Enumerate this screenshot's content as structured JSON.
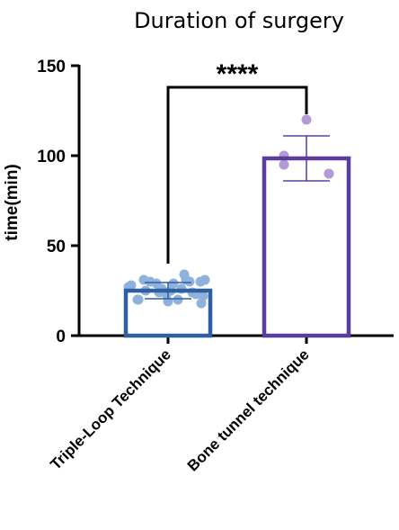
{
  "chart_data": {
    "type": "bar",
    "title": "Duration of surgery",
    "xlabel": "",
    "ylabel": "time(min)",
    "ylim": [
      0,
      150
    ],
    "yticks": [
      0,
      50,
      100,
      150
    ],
    "grid": false,
    "categories": [
      "Triple-Loop Technique",
      "Bone tunnel technique"
    ],
    "series": [
      {
        "values": [
          25,
          98.5
        ],
        "error": [
          4.5,
          12.5
        ],
        "bar_color": "#2e5fa0",
        "point_color": "#8fb2dd",
        "points": [
          28,
          31,
          24,
          23,
          29,
          20,
          26,
          30,
          23,
          22,
          30,
          25,
          31,
          27,
          19,
          34,
          24,
          30,
          20,
          29,
          26,
          20,
          18,
          25,
          31
        ],
        "bar_color_2": "#5b3e9c",
        "point_color_2": "#b49ad6"
      }
    ],
    "groups": [
      {
        "category": "Triple-Loop Technique",
        "mean": 25,
        "sd": 4.5,
        "bar_color": "#2e5fa0",
        "point_color": "#8fb2dd",
        "points": [
          28,
          31,
          24,
          23,
          29,
          20,
          26,
          30,
          23,
          22,
          30,
          25,
          31,
          27,
          19,
          34,
          24,
          30,
          20,
          29,
          26,
          20,
          18,
          25,
          31
        ]
      },
      {
        "category": "Bone tunnel technique",
        "mean": 98.5,
        "sd": 12.5,
        "bar_color": "#5b3e9c",
        "point_color": "#b49ad6",
        "points": [
          120,
          100,
          90,
          95,
          90
        ]
      }
    ],
    "significance": {
      "label": "****",
      "between": [
        0,
        1
      ]
    }
  }
}
